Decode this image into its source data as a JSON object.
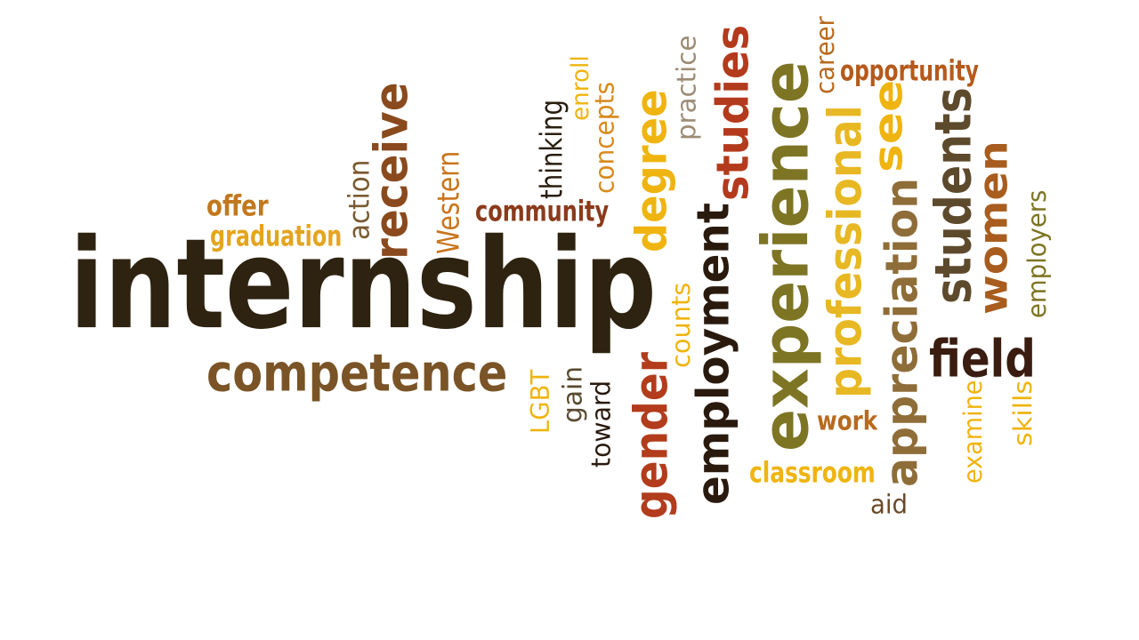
{
  "word_cloud": {
    "words": [
      {
        "id": "internship",
        "text": "internship",
        "color": "#2e2310"
      },
      {
        "id": "competence",
        "text": "competence",
        "color": "#7a5426"
      },
      {
        "id": "experience",
        "text": "experience",
        "color": "#7d7524"
      },
      {
        "id": "studies",
        "text": "studies",
        "color": "#b33a1c"
      },
      {
        "id": "degree",
        "text": "degree",
        "color": "#efb40f"
      },
      {
        "id": "professional",
        "text": "professional",
        "color": "#e7b823"
      },
      {
        "id": "appreciation",
        "text": "appreciation",
        "color": "#8e6d39"
      },
      {
        "id": "students",
        "text": "students",
        "color": "#5d4a2c"
      },
      {
        "id": "women",
        "text": "women",
        "color": "#a85d1e"
      },
      {
        "id": "field",
        "text": "field",
        "color": "#3a1d10"
      },
      {
        "id": "employment",
        "text": "employment",
        "color": "#2a1a0e"
      },
      {
        "id": "gender",
        "text": "gender",
        "color": "#b23c1c"
      },
      {
        "id": "receive",
        "text": "receive",
        "color": "#8a4a1d"
      },
      {
        "id": "see",
        "text": "see",
        "color": "#efb40f"
      },
      {
        "id": "community",
        "text": "community",
        "color": "#8b3a1c"
      },
      {
        "id": "graduation",
        "text": "graduation",
        "color": "#e4a51e"
      },
      {
        "id": "offer",
        "text": "offer",
        "color": "#c2781e"
      },
      {
        "id": "action",
        "text": "action",
        "color": "#7a5a30"
      },
      {
        "id": "western",
        "text": "Western",
        "color": "#c8761e"
      },
      {
        "id": "thinking",
        "text": "thinking",
        "color": "#2a1f10"
      },
      {
        "id": "enroll",
        "text": "enroll",
        "color": "#efb40f"
      },
      {
        "id": "concepts",
        "text": "concepts",
        "color": "#d88a1e"
      },
      {
        "id": "practice",
        "text": "practice",
        "color": "#9d8c74"
      },
      {
        "id": "career",
        "text": "career",
        "color": "#b86a1e"
      },
      {
        "id": "opportunity",
        "text": "opportunity",
        "color": "#b55a1c"
      },
      {
        "id": "employers",
        "text": "employers",
        "color": "#7d7524"
      },
      {
        "id": "counts",
        "text": "counts",
        "color": "#efb40f"
      },
      {
        "id": "lgbt",
        "text": "LGBT",
        "color": "#efb40f"
      },
      {
        "id": "gain",
        "text": "gain",
        "color": "#5a4a30"
      },
      {
        "id": "toward",
        "text": "toward",
        "color": "#2a1a0e"
      },
      {
        "id": "work",
        "text": "work",
        "color": "#b86a1e"
      },
      {
        "id": "classroom",
        "text": "classroom",
        "color": "#efb40f"
      },
      {
        "id": "aid",
        "text": "aid",
        "color": "#6a4a2a"
      },
      {
        "id": "examine",
        "text": "examine",
        "color": "#efb40f"
      },
      {
        "id": "skills",
        "text": "skills",
        "color": "#efb40f"
      }
    ]
  }
}
